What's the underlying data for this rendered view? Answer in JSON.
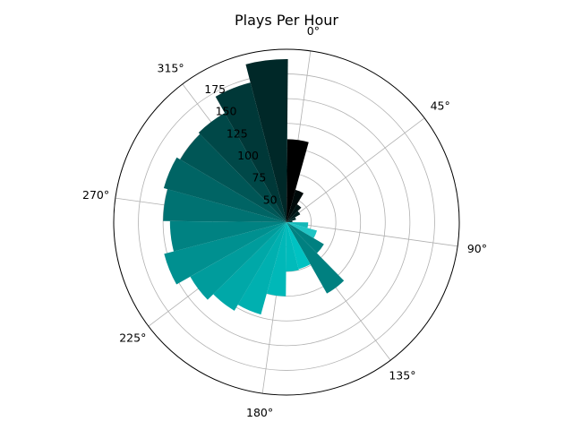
{
  "chart_data": {
    "type": "bar",
    "projection": "polar",
    "title": "Plays Per Hour",
    "theta_direction": "clockwise",
    "theta_zero_location": "near top (offset ~8° clockwise from vertical)",
    "angle_tick_labels": [
      "0°",
      "45°",
      "90°",
      "135°",
      "180°",
      "225°",
      "270°",
      "315°"
    ],
    "radial_tick_labels": [
      "50",
      "75",
      "100",
      "125",
      "150",
      "175"
    ],
    "radial_ticks": [
      50,
      75,
      100,
      125,
      150,
      175
    ],
    "rlim": [
      25,
      200
    ],
    "grid": true,
    "bar_count": 24,
    "bar_angles_deg": [
      0,
      15,
      30,
      45,
      60,
      75,
      90,
      105,
      120,
      135,
      150,
      165,
      180,
      195,
      210,
      225,
      240,
      255,
      270,
      285,
      300,
      315,
      330,
      345
    ],
    "values": [
      109,
      59,
      46,
      41,
      35,
      31,
      47,
      57,
      69,
      108,
      74,
      75,
      100,
      122,
      129,
      137,
      153,
      143,
      150,
      154,
      150,
      152,
      171,
      190
    ],
    "colors": [
      "#000000",
      "#000a0a",
      "#001414",
      "#001e1e",
      "#002828",
      "#003232",
      "#14b8b8",
      "#1fc4c4",
      "#008080",
      "#008080",
      "#00c2c2",
      "#00bbbb",
      "#00b8b8",
      "#00b0b0",
      "#00a8a8",
      "#009c9c",
      "#009090",
      "#008282",
      "#007272",
      "#006464",
      "#005656",
      "#004848",
      "#003838",
      "#002828"
    ]
  }
}
